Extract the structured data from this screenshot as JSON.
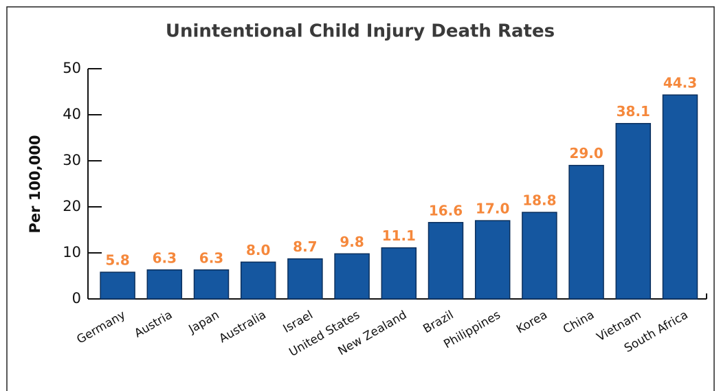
{
  "chart_data": {
    "type": "bar",
    "title": "Unintentional Child Injury Death Rates",
    "y_label": "Per 100,000",
    "categories": [
      "Germany",
      "Austria",
      "Japan",
      "Australia",
      "Israel",
      "United States",
      "New Zealand",
      "Brazil",
      "Philippines",
      "Korea",
      "China",
      "Vietnam",
      "South Africa"
    ],
    "values": [
      5.8,
      6.3,
      6.3,
      8.0,
      8.7,
      9.8,
      11.1,
      16.6,
      17.0,
      18.8,
      29.0,
      38.1,
      44.3
    ],
    "value_labels": [
      "5.8",
      "6.3",
      "6.3",
      "8.0",
      "8.7",
      "9.8",
      "11.1",
      "16.6",
      "17.0",
      "18.8",
      "29.0",
      "38.1",
      "44.3"
    ],
    "color": "#1557a0",
    "label_color": "#f5883c",
    "ylim": [
      0,
      50
    ],
    "yticks": [
      0,
      10,
      20,
      30,
      40,
      50
    ],
    "grid": false
  }
}
